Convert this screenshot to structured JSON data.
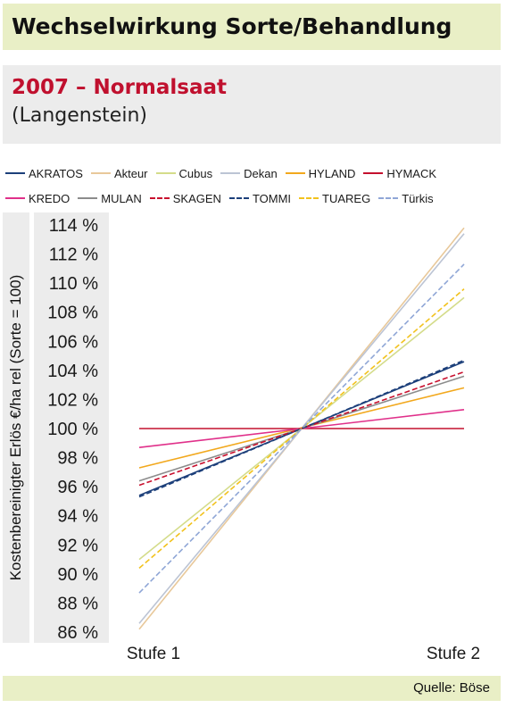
{
  "header": {
    "title": "Wechselwirkung Sorte/Behandlung"
  },
  "subheader": {
    "year_title": "2007 – Normalsaat",
    "location": "(Langenstein)"
  },
  "source": "Quelle: Böse",
  "chart_data": {
    "type": "line",
    "title": "",
    "xlabel": "",
    "ylabel": "Kostenbereinigter Erlös €/ha rel (Sorte = 100)",
    "categories": [
      "Stufe 1",
      "Stufe 2"
    ],
    "ylim": [
      86,
      114
    ],
    "yticks": [
      86,
      88,
      90,
      92,
      94,
      96,
      98,
      100,
      102,
      104,
      106,
      108,
      110,
      112,
      114
    ],
    "ytick_labels": [
      "86 %",
      "88 %",
      "90 %",
      "92 %",
      "94 %",
      "96 %",
      "98 %",
      "100 %",
      "102 %",
      "104 %",
      "106 %",
      "108 %",
      "110 %",
      "112 %",
      "114 %"
    ],
    "grid": false,
    "legend_position": "top",
    "series": [
      {
        "name": "AKRATOS",
        "values": [
          95.4,
          104.6
        ],
        "color": "#1c3f7a",
        "dash": "solid"
      },
      {
        "name": "Akteur",
        "values": [
          86.2,
          113.8
        ],
        "color": "#e8c89a",
        "dash": "solid"
      },
      {
        "name": "Cubus",
        "values": [
          91.0,
          109.0
        ],
        "color": "#d4dc8a",
        "dash": "solid"
      },
      {
        "name": "Dekan",
        "values": [
          86.6,
          113.4
        ],
        "color": "#bcc4d4",
        "dash": "solid"
      },
      {
        "name": "HYLAND",
        "values": [
          97.3,
          102.8
        ],
        "color": "#f2a81d",
        "dash": "solid"
      },
      {
        "name": "HYMACK",
        "values": [
          100.0,
          100.0
        ],
        "color": "#c4102e",
        "dash": "solid"
      },
      {
        "name": "KREDO",
        "values": [
          98.7,
          101.3
        ],
        "color": "#e0308a",
        "dash": "solid"
      },
      {
        "name": "MULAN",
        "values": [
          96.4,
          103.6
        ],
        "color": "#8c8c8c",
        "dash": "solid"
      },
      {
        "name": "SKAGEN",
        "values": [
          96.1,
          103.9
        ],
        "color": "#c8102e",
        "dash": "dashed"
      },
      {
        "name": "TOMMI",
        "values": [
          95.3,
          104.7
        ],
        "color": "#1c3f7a",
        "dash": "dashed"
      },
      {
        "name": "TUAREG",
        "values": [
          90.4,
          109.6
        ],
        "color": "#f2c21d",
        "dash": "dashed"
      },
      {
        "name": "Türkis",
        "values": [
          88.7,
          111.3
        ],
        "color": "#8fa6d6",
        "dash": "dashed"
      }
    ]
  }
}
